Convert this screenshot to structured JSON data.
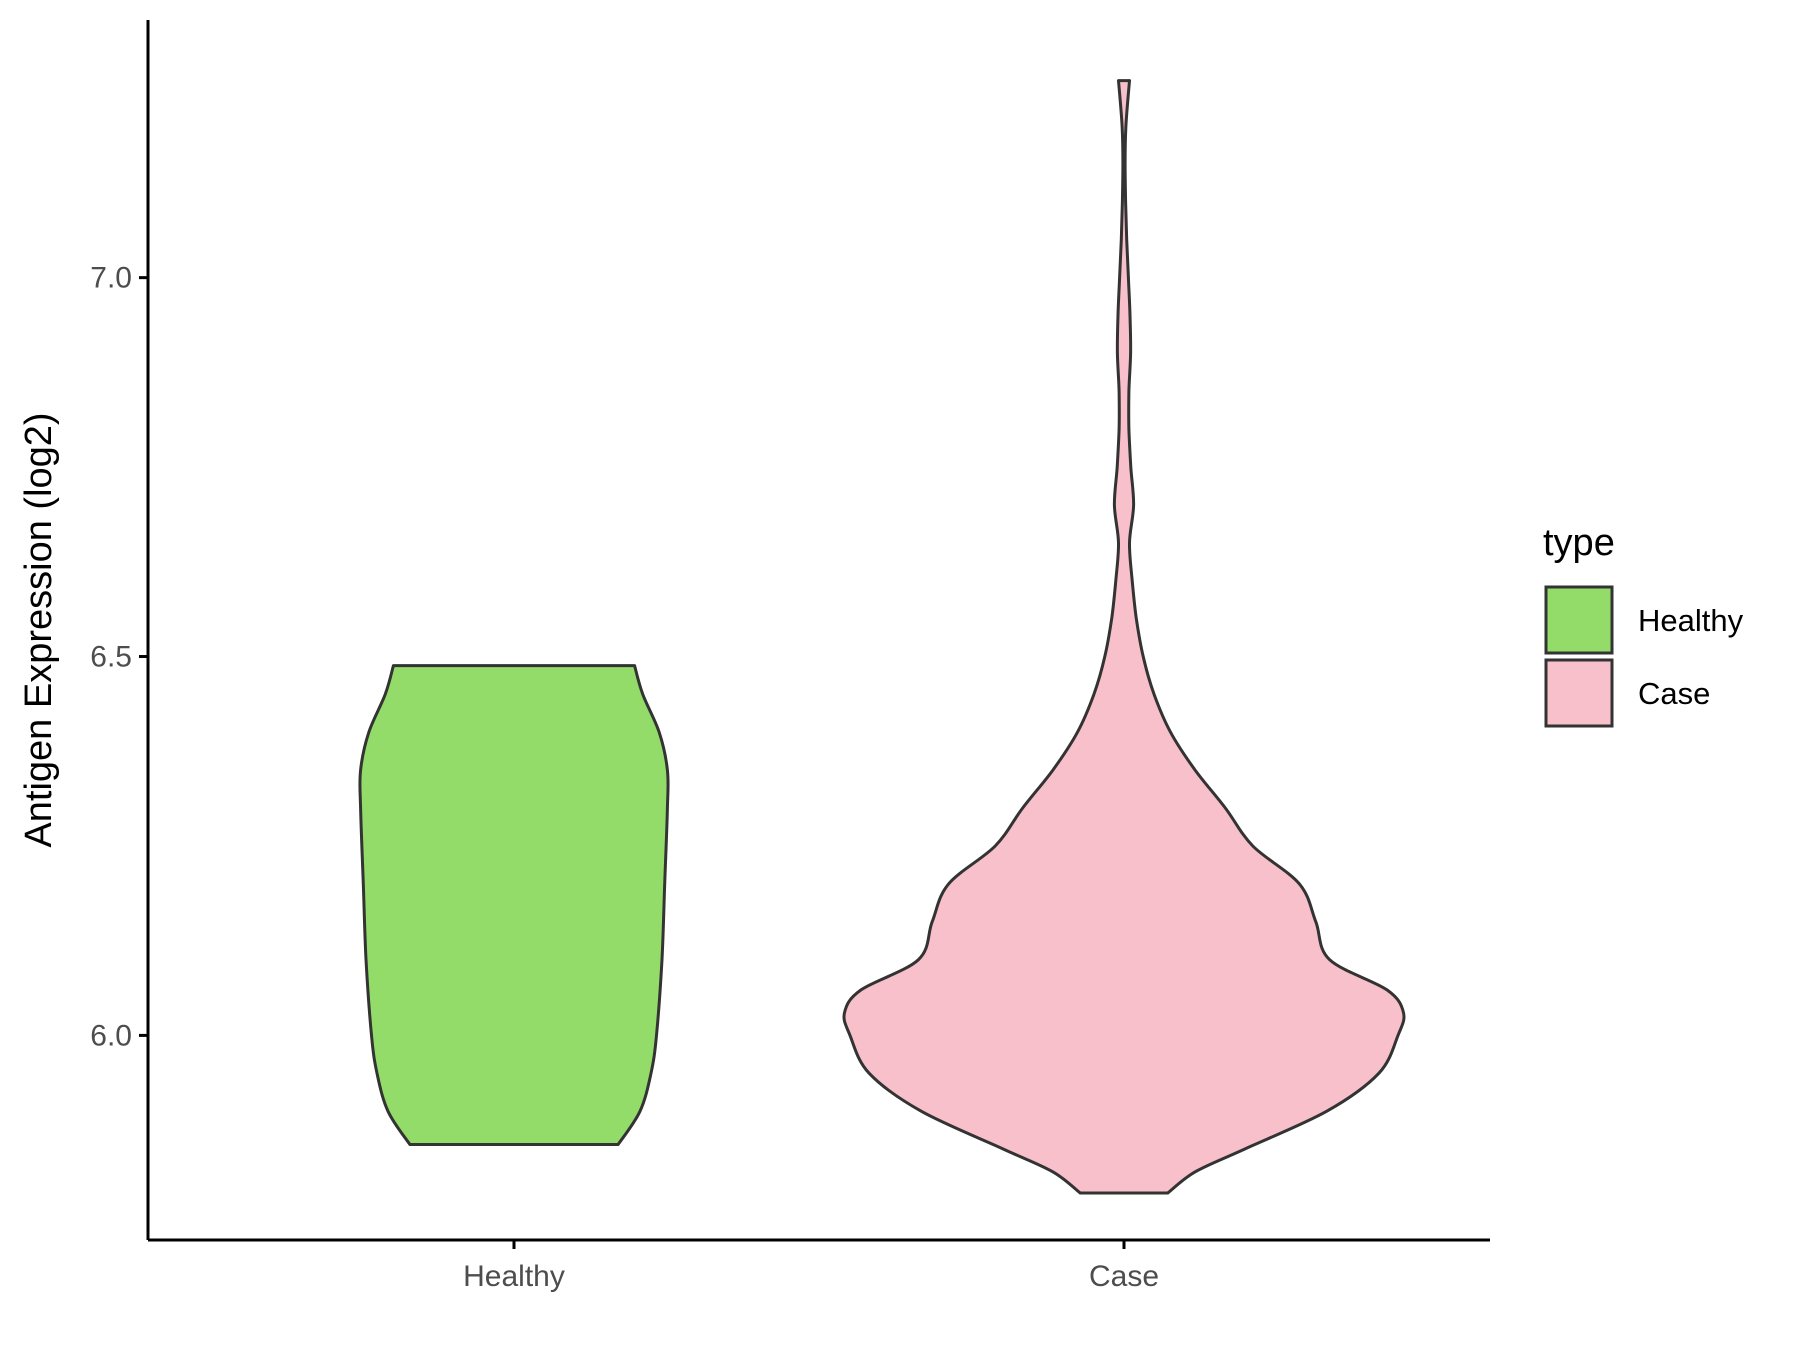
{
  "chart_data": {
    "type": "violin",
    "ylabel": "Antigen Expression (log2)",
    "xlabel": "",
    "ylim": [
      5.73,
      7.34
    ],
    "yticks": [
      6.0,
      6.5,
      7.0
    ],
    "ytick_labels": [
      "6.0",
      "6.5",
      "7.0"
    ],
    "categories": [
      "Healthy",
      "Case"
    ],
    "grid": false,
    "legend": {
      "title": "type",
      "position": "right",
      "entries": [
        {
          "label": "Healthy",
          "color": "#93dc6a"
        },
        {
          "label": "Case",
          "color": "#f8c0cb"
        }
      ]
    },
    "outline_color": "#333333",
    "series": [
      {
        "category": "Healthy",
        "color": "#93dc6a",
        "min": 5.856,
        "max": 6.488,
        "density": [
          [
            5.856,
            0.38
          ],
          [
            5.9,
            0.46
          ],
          [
            5.95,
            0.5
          ],
          [
            6.0,
            0.52
          ],
          [
            6.1,
            0.54
          ],
          [
            6.2,
            0.55
          ],
          [
            6.3,
            0.56
          ],
          [
            6.35,
            0.56
          ],
          [
            6.4,
            0.53
          ],
          [
            6.45,
            0.47
          ],
          [
            6.488,
            0.44
          ]
        ]
      },
      {
        "category": "Case",
        "color": "#f8c0cb",
        "min": 5.792,
        "max": 7.26,
        "density": [
          [
            5.792,
            0.16
          ],
          [
            5.82,
            0.26
          ],
          [
            5.85,
            0.44
          ],
          [
            5.9,
            0.74
          ],
          [
            5.95,
            0.93
          ],
          [
            6.0,
            1.0
          ],
          [
            6.03,
            1.02
          ],
          [
            6.06,
            0.96
          ],
          [
            6.1,
            0.75
          ],
          [
            6.15,
            0.7
          ],
          [
            6.2,
            0.64
          ],
          [
            6.25,
            0.47
          ],
          [
            6.3,
            0.37
          ],
          [
            6.35,
            0.26
          ],
          [
            6.4,
            0.17
          ],
          [
            6.45,
            0.11
          ],
          [
            6.5,
            0.07
          ],
          [
            6.55,
            0.045
          ],
          [
            6.6,
            0.03
          ],
          [
            6.65,
            0.02
          ],
          [
            6.7,
            0.035
          ],
          [
            6.75,
            0.025
          ],
          [
            6.8,
            0.018
          ],
          [
            6.85,
            0.018
          ],
          [
            6.9,
            0.024
          ],
          [
            6.95,
            0.022
          ],
          [
            7.0,
            0.016
          ],
          [
            7.05,
            0.01
          ],
          [
            7.1,
            0.006
          ],
          [
            7.15,
            0.004
          ],
          [
            7.2,
            0.007
          ],
          [
            7.26,
            0.02
          ]
        ]
      }
    ]
  }
}
